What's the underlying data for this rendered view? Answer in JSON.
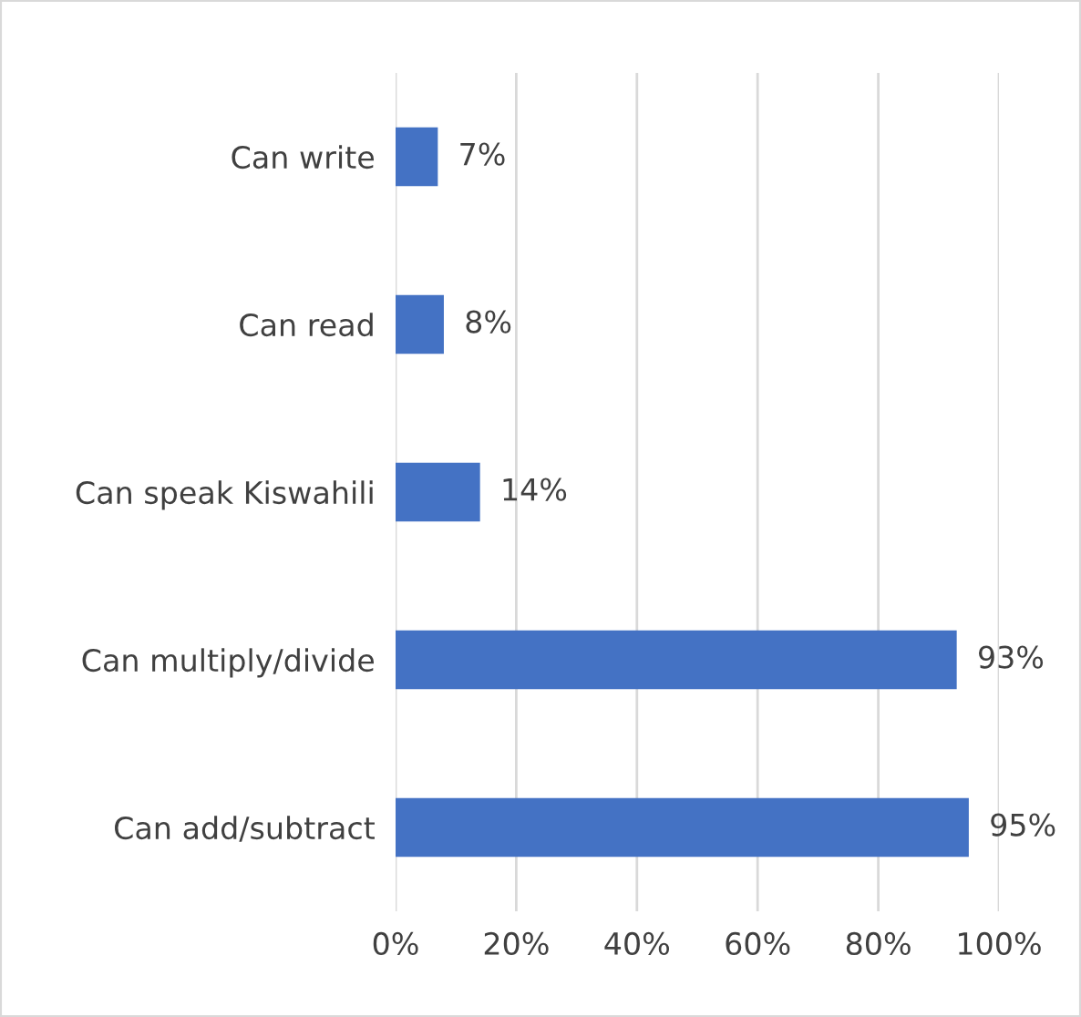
{
  "chart_data": {
    "type": "bar",
    "orientation": "horizontal",
    "categories": [
      "Can write",
      "Can read",
      "Can speak Kiswahili",
      "Can multiply/divide",
      "Can add/subtract"
    ],
    "values": [
      7,
      8,
      14,
      93,
      95
    ],
    "color": "#4472c4",
    "value_labels": [
      "7%",
      "8%",
      "14%",
      "93%",
      "95%"
    ],
    "xlim": [
      0,
      100
    ],
    "xticks": [
      {
        "value": 0,
        "label": "0%"
      },
      {
        "value": 20,
        "label": "20%"
      },
      {
        "value": 40,
        "label": "40%"
      },
      {
        "value": 60,
        "label": "60%"
      },
      {
        "value": 80,
        "label": "80%"
      },
      {
        "value": 100,
        "label": "100%"
      }
    ],
    "grid": "x"
  }
}
